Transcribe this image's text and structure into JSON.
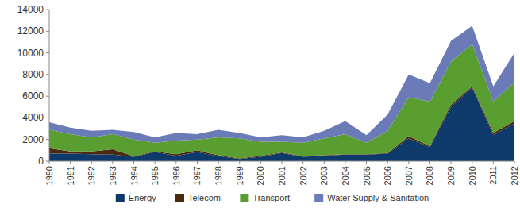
{
  "chart_data": {
    "type": "area",
    "stacked": true,
    "legend": "bottom",
    "grid": false,
    "categories": [
      "1990",
      "1991",
      "1992",
      "1993",
      "1994",
      "1995",
      "1996",
      "1997",
      "1998",
      "1999",
      "2000",
      "2001",
      "2002",
      "2003",
      "2004",
      "2005",
      "2006",
      "2007",
      "2008",
      "2009",
      "2010",
      "2011",
      "2012"
    ],
    "ylim": [
      0,
      14000
    ],
    "yticks": [
      0,
      2000,
      4000,
      6000,
      8000,
      10000,
      12000,
      14000
    ],
    "series": [
      {
        "name": "Energy",
        "color": "#0e3a6b",
        "values": [
          700,
          700,
          650,
          600,
          400,
          850,
          500,
          850,
          450,
          200,
          400,
          750,
          400,
          500,
          600,
          600,
          700,
          2100,
          1300,
          5000,
          6800,
          2400,
          3500
        ]
      },
      {
        "name": "Telecom",
        "color": "#4b2a12",
        "values": [
          500,
          200,
          250,
          500,
          50,
          50,
          150,
          150,
          100,
          50,
          100,
          50,
          50,
          50,
          50,
          50,
          50,
          200,
          100,
          200,
          100,
          200,
          200
        ]
      },
      {
        "name": "Transport",
        "color": "#5a9e32",
        "values": [
          1700,
          1600,
          1300,
          1400,
          1550,
          800,
          1250,
          1000,
          1650,
          1850,
          1300,
          1000,
          1250,
          1550,
          1850,
          1050,
          2050,
          3600,
          4100,
          4000,
          3900,
          2900,
          3600
        ]
      },
      {
        "name": "Water Supply & Sanitation",
        "color": "#6b7bb8",
        "values": [
          700,
          600,
          600,
          400,
          700,
          500,
          700,
          500,
          700,
          500,
          400,
          600,
          500,
          700,
          1200,
          700,
          1500,
          2100,
          1700,
          1900,
          1700,
          1400,
          2700
        ]
      }
    ]
  }
}
